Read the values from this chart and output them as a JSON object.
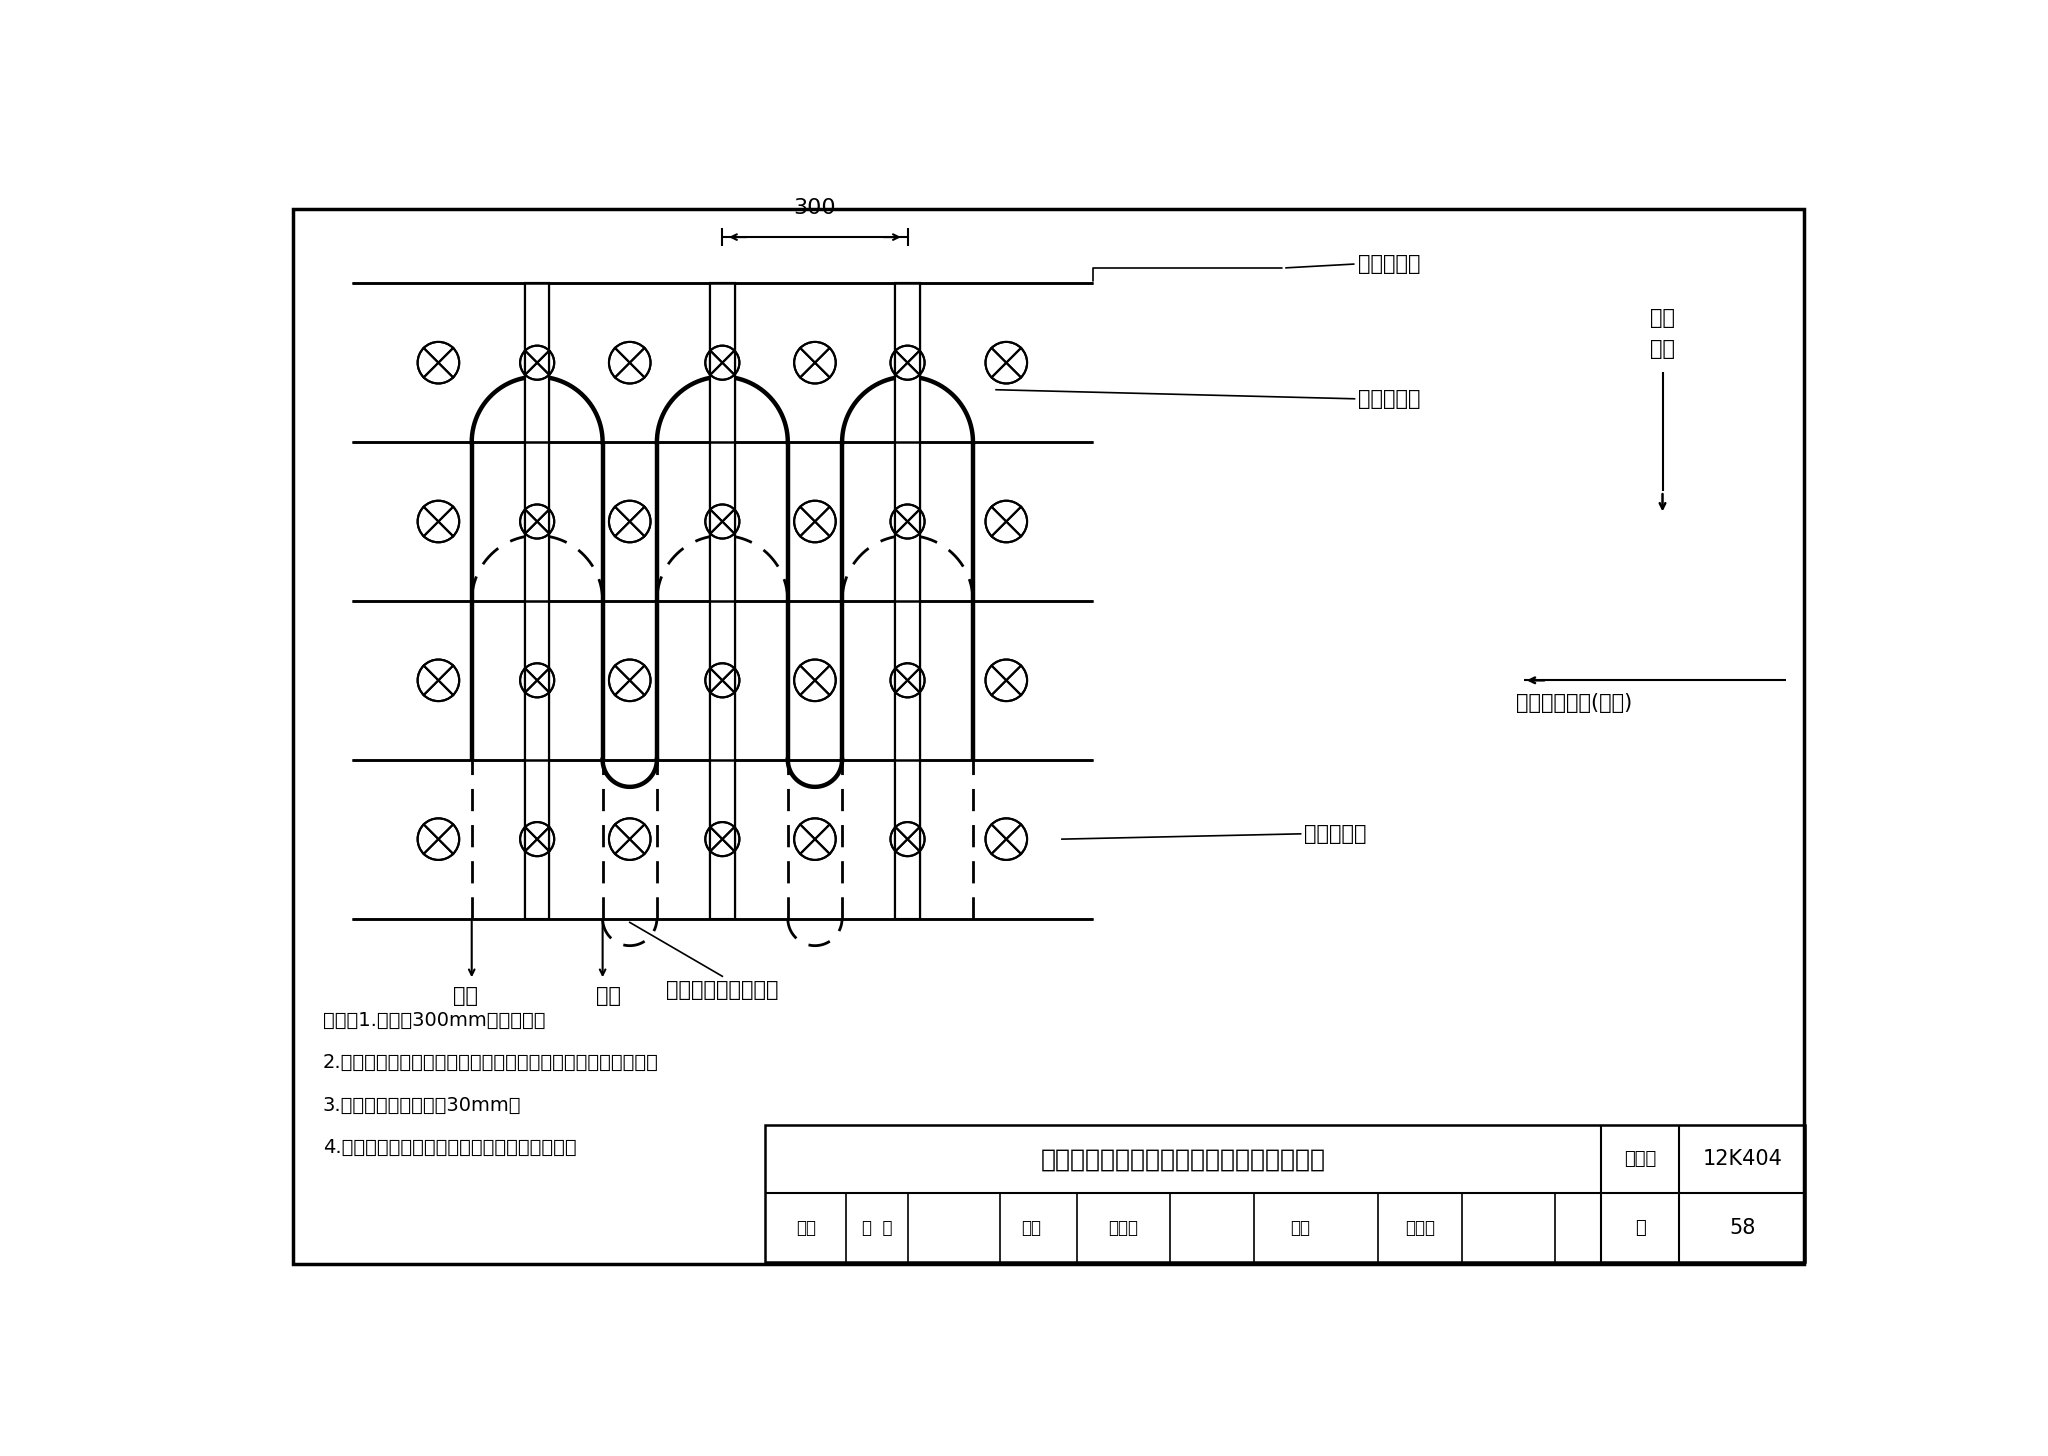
{
  "bg_color": "#ffffff",
  "line_color": "#000000",
  "title_text": "预制轻薄供暖板（带龙骨）固定方法示意图",
  "catalog_label": "图集号",
  "catalog_value": "12K404",
  "page_label": "页",
  "page_value": "58",
  "notes": [
    "说明：1.每间隔300mm打钉固定。",
    "2.木地板应与龙骨垂直，设计时应注意确认木地板铺设的方向。",
    "3.固定用钉长度应大于30mm。",
    "4.供暖板内置龙骨、边沿放置龙骨均为木龙骨。"
  ],
  "label_bianyuan": "边沿木龙骨",
  "label_diwen": "地暖输配管",
  "label_neizhi": "内置木龙骨",
  "label_guding": "固定地暖供暖板用钉",
  "label_gongshui": "供水",
  "label_huishui": "回水",
  "label_peigang_1": "配管",
  "label_peigang_2": "方向",
  "label_mudi": "木地板的方向(木纹)",
  "dim_300": "300",
  "review_shenhe": "审核",
  "review_gao": "高  波",
  "review_jiaodui": "校对",
  "review_ren": "任兆成",
  "review_sheji": "设计",
  "review_deng": "邓有源"
}
